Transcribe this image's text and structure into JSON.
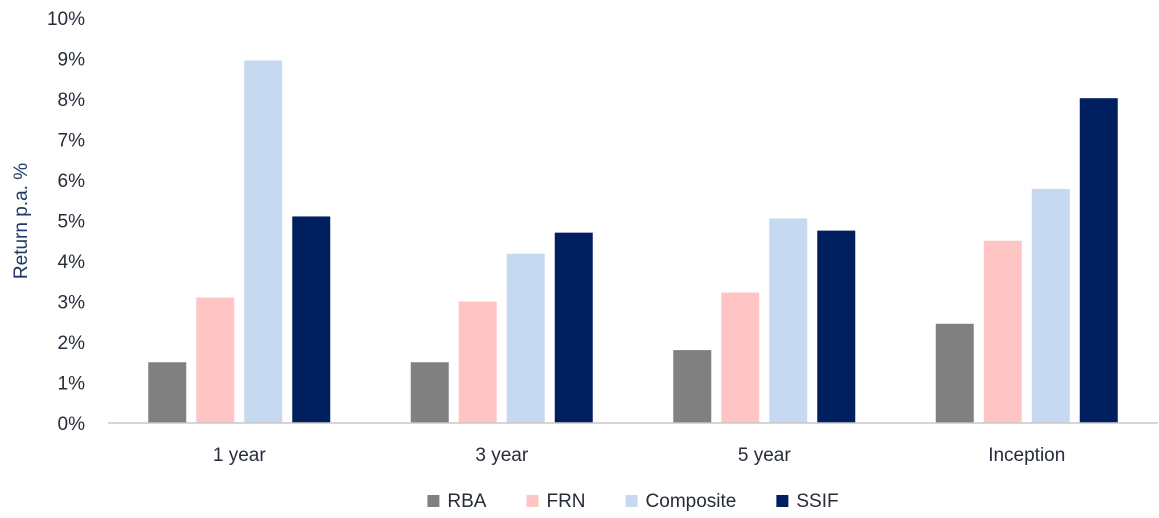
{
  "chart_data": {
    "type": "bar",
    "ylabel": "Return p.a. %",
    "ylim": [
      0,
      10
    ],
    "y_ticks": [
      0,
      1,
      2,
      3,
      4,
      5,
      6,
      7,
      8,
      9,
      10
    ],
    "y_tick_labels": [
      "0%",
      "1%",
      "2%",
      "3%",
      "4%",
      "5%",
      "6%",
      "7%",
      "8%",
      "9%",
      "10%"
    ],
    "categories": [
      "1 year",
      "3 year",
      "5 year",
      "Inception"
    ],
    "series": [
      {
        "name": "RBA",
        "color": "#808080",
        "values": [
          1.5,
          1.5,
          1.8,
          2.45
        ]
      },
      {
        "name": "FRN",
        "color": "#ffc5c5",
        "values": [
          3.1,
          3.0,
          3.22,
          4.5
        ]
      },
      {
        "name": "Composite",
        "color": "#c7d9f1",
        "values": [
          8.95,
          4.18,
          5.05,
          5.78
        ]
      },
      {
        "name": "SSIF",
        "color": "#001f5f",
        "values": [
          5.1,
          4.7,
          4.75,
          8.02
        ]
      }
    ],
    "grid": false,
    "legend_position": "bottom"
  }
}
